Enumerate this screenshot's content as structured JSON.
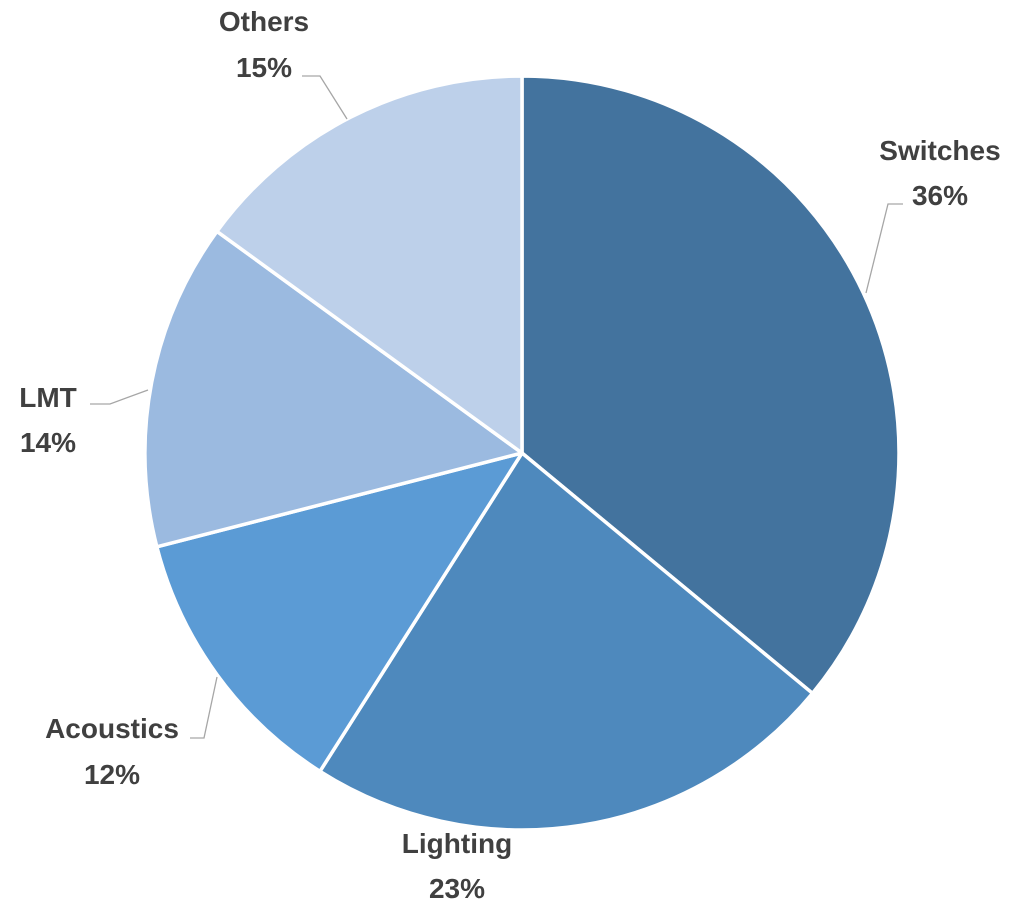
{
  "chart_data": {
    "type": "pie",
    "title": "",
    "start_angle_deg": 0,
    "direction": "clockwise",
    "legend": "none",
    "slices": [
      {
        "label": "Switches",
        "value": 36,
        "value_label": "36%",
        "color": "#43739E"
      },
      {
        "label": "Lighting",
        "value": 23,
        "value_label": "23%",
        "color": "#4E89BD"
      },
      {
        "label": "Acoustics",
        "value": 12,
        "value_label": "12%",
        "color": "#5B9BD5"
      },
      {
        "label": "LMT",
        "value": 14,
        "value_label": "14%",
        "color": "#9BBAE0"
      },
      {
        "label": "Others",
        "value": 15,
        "value_label": "15%",
        "color": "#BDD0EA"
      }
    ]
  }
}
